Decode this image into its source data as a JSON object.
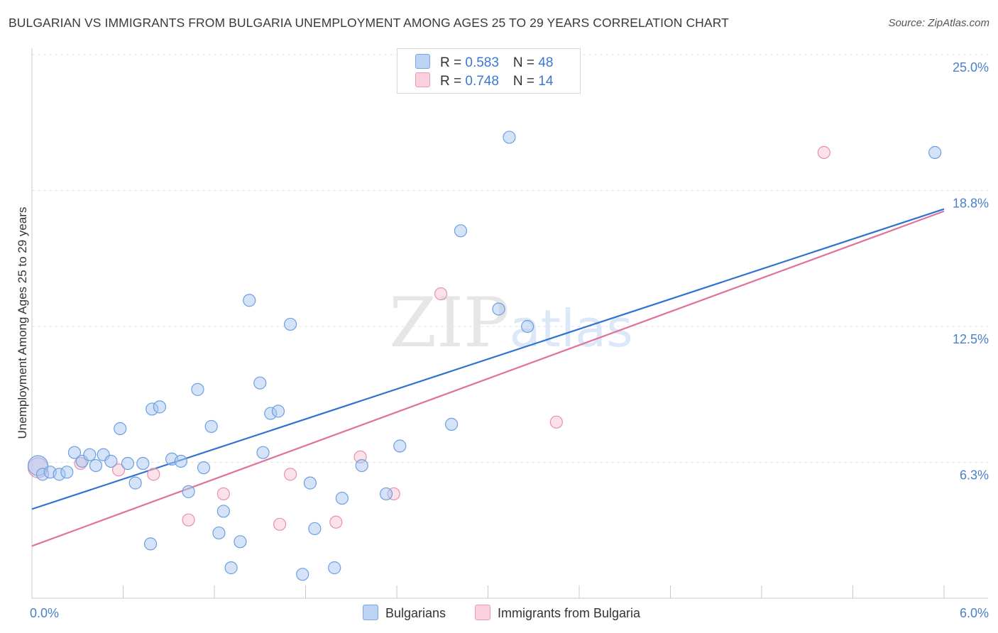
{
  "title": "BULGARIAN VS IMMIGRANTS FROM BULGARIA UNEMPLOYMENT AMONG AGES 25 TO 29 YEARS CORRELATION CHART",
  "source": "Source: ZipAtlas.com",
  "watermark": {
    "zip": "ZIP",
    "atlas": "atlas"
  },
  "legend": {
    "rows": [
      {
        "r_label": "R = ",
        "r_value": "0.583",
        "n_label": "N = ",
        "n_value": "48",
        "color": "#9dc1f0"
      },
      {
        "r_label": "R = ",
        "r_value": "0.748",
        "n_label": "N = ",
        "n_value": "14",
        "color": "#f7b8cb"
      }
    ]
  },
  "bottom_legend": {
    "series1": "Bulgarians",
    "series2": "Immigrants from Bulgaria"
  },
  "colors": {
    "blue_fill": "#a9c8f2",
    "blue_stroke": "#6d9fe0",
    "blue_line": "#2f73d1",
    "pink_fill": "#f8c3d3",
    "pink_stroke": "#e890ad",
    "pink_line": "#e0719a",
    "tick_text": "#4a7fc9",
    "grid": "#e3e3e3"
  },
  "chart_data": {
    "type": "scatter",
    "title": "BULGARIAN VS IMMIGRANTS FROM BULGARIA UNEMPLOYMENT AMONG AGES 25 TO 29 YEARS CORRELATION CHART",
    "xlabel": "",
    "ylabel": "Unemployment Among Ages 25 to 29 years",
    "xlim": [
      0,
      6.0
    ],
    "ylim": [
      0,
      25.0
    ],
    "x_tick_labels": [
      "0.0%",
      "6.0%"
    ],
    "y_ticks": [
      6.25,
      12.5,
      18.75,
      25.0
    ],
    "y_tick_labels": [
      "6.3%",
      "12.5%",
      "18.8%",
      "25.0%"
    ],
    "grid": true,
    "series": [
      {
        "name": "Bulgarians",
        "R": 0.583,
        "N": 48,
        "trend": {
          "x": [
            0,
            6.0
          ],
          "y": [
            4.1,
            17.9
          ]
        },
        "points": [
          [
            0.04,
            6.1
          ],
          [
            0.07,
            5.7
          ],
          [
            0.12,
            5.8
          ],
          [
            0.18,
            5.7
          ],
          [
            0.23,
            5.8
          ],
          [
            0.28,
            6.7
          ],
          [
            0.33,
            6.3
          ],
          [
            0.38,
            6.6
          ],
          [
            0.42,
            6.1
          ],
          [
            0.47,
            6.6
          ],
          [
            0.52,
            6.3
          ],
          [
            0.58,
            7.8
          ],
          [
            0.63,
            6.2
          ],
          [
            0.68,
            5.3
          ],
          [
            0.73,
            6.2
          ],
          [
            0.78,
            2.5
          ],
          [
            0.79,
            8.7
          ],
          [
            0.84,
            8.8
          ],
          [
            0.92,
            6.4
          ],
          [
            0.98,
            6.3
          ],
          [
            1.03,
            4.9
          ],
          [
            1.09,
            9.6
          ],
          [
            1.13,
            6.0
          ],
          [
            1.18,
            7.9
          ],
          [
            1.26,
            4.0
          ],
          [
            1.23,
            3.0
          ],
          [
            1.37,
            2.6
          ],
          [
            1.31,
            1.4
          ],
          [
            1.43,
            13.7
          ],
          [
            1.5,
            9.9
          ],
          [
            1.52,
            6.7
          ],
          [
            1.57,
            8.5
          ],
          [
            1.62,
            8.6
          ],
          [
            1.7,
            12.6
          ],
          [
            1.78,
            1.1
          ],
          [
            1.83,
            5.3
          ],
          [
            1.86,
            3.2
          ],
          [
            1.99,
            1.4
          ],
          [
            2.04,
            4.6
          ],
          [
            2.17,
            6.1
          ],
          [
            2.33,
            4.8
          ],
          [
            2.42,
            7.0
          ],
          [
            2.76,
            8.0
          ],
          [
            2.82,
            16.9
          ],
          [
            3.07,
            13.3
          ],
          [
            3.14,
            21.2
          ],
          [
            3.26,
            12.5
          ],
          [
            5.94,
            20.5
          ]
        ]
      },
      {
        "name": "Immigrants from Bulgaria",
        "R": 0.748,
        "N": 14,
        "trend": {
          "x": [
            0,
            6.0
          ],
          "y": [
            2.4,
            17.8
          ]
        },
        "points": [
          [
            0.04,
            6.0
          ],
          [
            0.32,
            6.2
          ],
          [
            0.57,
            5.9
          ],
          [
            0.8,
            5.7
          ],
          [
            1.03,
            3.6
          ],
          [
            1.26,
            4.8
          ],
          [
            1.63,
            3.4
          ],
          [
            1.7,
            5.7
          ],
          [
            2.0,
            3.5
          ],
          [
            2.16,
            6.5
          ],
          [
            2.38,
            4.8
          ],
          [
            2.69,
            14.0
          ],
          [
            3.45,
            8.1
          ],
          [
            5.21,
            20.5
          ]
        ]
      }
    ]
  }
}
